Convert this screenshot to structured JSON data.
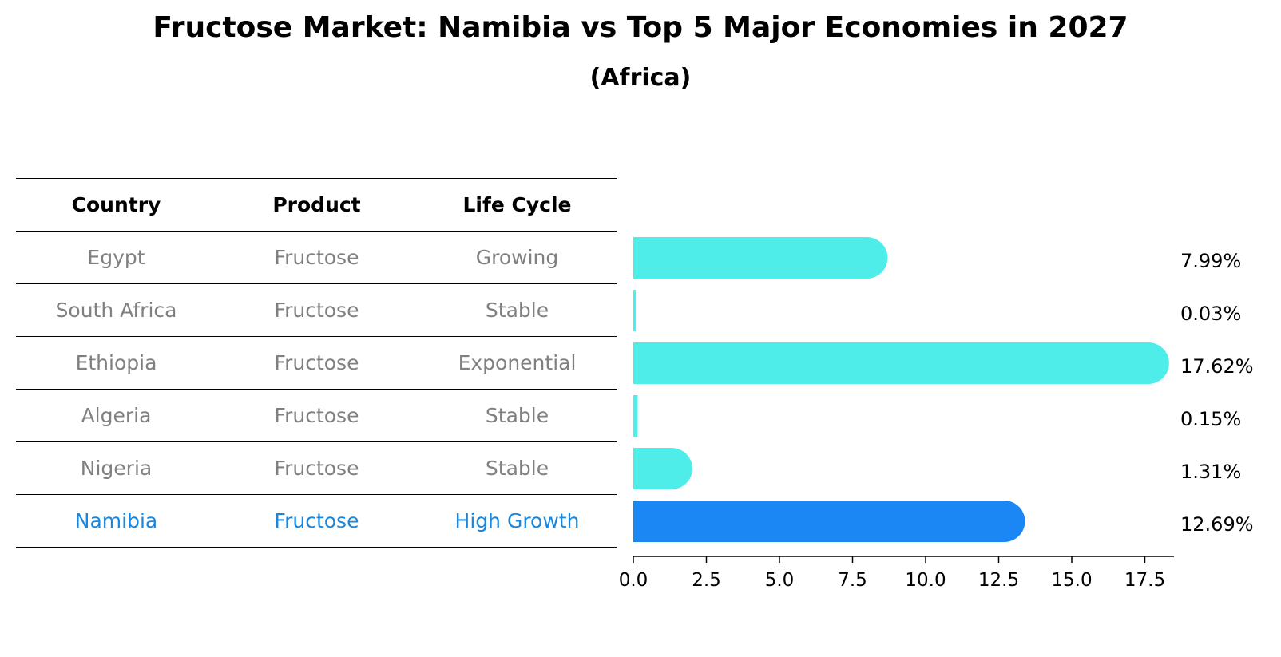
{
  "title": "Fructose Market: Namibia vs Top 5 Major Economies in 2027",
  "subtitle": "(Africa)",
  "table": {
    "headers": [
      "Country",
      "Product",
      "Life Cycle"
    ],
    "rows": [
      {
        "country": "Egypt",
        "product": "Fructose",
        "life_cycle": "Growing"
      },
      {
        "country": "South Africa",
        "product": "Fructose",
        "life_cycle": "Stable"
      },
      {
        "country": "Ethiopia",
        "product": "Fructose",
        "life_cycle": "Exponential"
      },
      {
        "country": "Algeria",
        "product": "Fructose",
        "life_cycle": "Stable"
      },
      {
        "country": "Nigeria",
        "product": "Fructose",
        "life_cycle": "Stable"
      },
      {
        "country": "Namibia",
        "product": "Fructose",
        "life_cycle": "High Growth"
      }
    ]
  },
  "colors": {
    "bar": "#4eede9",
    "highlight_bar": "#1a87f5",
    "highlight_text": "#1a87de",
    "muted_text": "#808080"
  },
  "chart_data": {
    "type": "bar",
    "orientation": "horizontal",
    "title": "Fructose Market: Namibia vs Top 5 Major Economies in 2027",
    "subtitle": "(Africa)",
    "categories": [
      "Egypt",
      "South Africa",
      "Ethiopia",
      "Algeria",
      "Nigeria",
      "Namibia"
    ],
    "values": [
      7.99,
      0.03,
      17.62,
      0.15,
      1.31,
      12.69
    ],
    "value_labels": [
      "7.99%",
      "0.03%",
      "17.62%",
      "0.15%",
      "1.31%",
      "12.69%"
    ],
    "highlight": "Namibia",
    "xlim": [
      0,
      18.5
    ],
    "xticks": [
      0.0,
      2.5,
      5.0,
      7.5,
      10.0,
      12.5,
      15.0,
      17.5
    ],
    "xtick_labels": [
      "0.0",
      "2.5",
      "5.0",
      "7.5",
      "10.0",
      "12.5",
      "15.0",
      "17.5"
    ],
    "xlabel": "",
    "ylabel": "",
    "grid": false,
    "legend": "none"
  }
}
